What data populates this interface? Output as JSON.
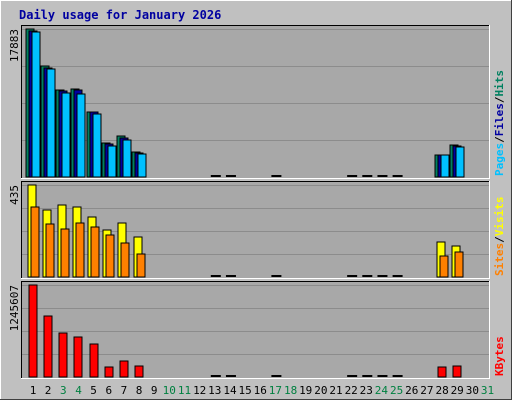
{
  "chart_data": {
    "type": "bar",
    "title": "Daily usage for January 2026",
    "colors": {
      "background": "#c0c0c0",
      "plot_bg": "#a8a8a8",
      "grid": "#8c8c8c",
      "title": "#0000a0",
      "hits": "#008060",
      "files": "#0000a0",
      "pages": "#00c0ff",
      "visits": "#ffff00",
      "sites": "#ff8000",
      "kbytes": "#ff0000",
      "weekend_label": "#008040"
    },
    "days": [
      "1",
      "2",
      "3",
      "4",
      "5",
      "6",
      "7",
      "8",
      "9",
      "10",
      "11",
      "12",
      "13",
      "14",
      "15",
      "16",
      "17",
      "18",
      "19",
      "20",
      "21",
      "22",
      "23",
      "24",
      "25",
      "26",
      "27",
      "28",
      "29",
      "30",
      "31"
    ],
    "weekend_days": [
      "3",
      "4",
      "10",
      "11",
      "17",
      "18",
      "24",
      "25",
      "31"
    ],
    "panels": [
      {
        "name": "hits-files-pages",
        "max_label": "17883",
        "max": 17883,
        "legend": [
          {
            "text": "Pages",
            "color": "#00c0ff"
          },
          {
            "text": "/",
            "color": "#000000"
          },
          {
            "text": "Files",
            "color": "#0000a0"
          },
          {
            "text": "/",
            "color": "#000000"
          },
          {
            "text": "Hits",
            "color": "#008060"
          }
        ],
        "series": [
          {
            "name": "Hits",
            "color": "#008060",
            "values": [
              17883,
              13400,
              10500,
              10600,
              7900,
              4100,
              4900,
              3000,
              0,
              0,
              0,
              0,
              0,
              0,
              0,
              0,
              0,
              0,
              0,
              0,
              0,
              0,
              0,
              0,
              0,
              0,
              0,
              2700,
              3900,
              0,
              0
            ]
          },
          {
            "name": "Files",
            "color": "#0000a0",
            "values": [
              17700,
              13200,
              10400,
              10500,
              7800,
              4000,
              4700,
              2900,
              0,
              0,
              0,
              0,
              0,
              0,
              0,
              0,
              0,
              0,
              0,
              0,
              0,
              0,
              0,
              0,
              0,
              0,
              0,
              2700,
              3800,
              0,
              0
            ]
          },
          {
            "name": "Pages",
            "color": "#00c0ff",
            "values": [
              17500,
              13000,
              10200,
              10000,
              7600,
              3800,
              4500,
              2800,
              0,
              0,
              0,
              0,
              0,
              0,
              0,
              0,
              0,
              0,
              0,
              0,
              0,
              0,
              0,
              0,
              0,
              0,
              0,
              2600,
              3600,
              0,
              0
            ]
          }
        ]
      },
      {
        "name": "visits-sites",
        "max_label": "435",
        "max": 435,
        "legend": [
          {
            "text": "Sites",
            "color": "#ff8000"
          },
          {
            "text": "/",
            "color": "#000000"
          },
          {
            "text": "Visits",
            "color": "#ffff00"
          }
        ],
        "series": [
          {
            "name": "Visits",
            "color": "#ffff00",
            "values": [
              435,
              315,
              340,
              330,
              285,
              220,
              255,
              190,
              0,
              0,
              0,
              0,
              0,
              0,
              0,
              0,
              0,
              0,
              0,
              0,
              0,
              0,
              0,
              0,
              0,
              0,
              0,
              165,
              145,
              0,
              0
            ]
          },
          {
            "name": "Sites",
            "color": "#ff8000",
            "values": [
              330,
              250,
              225,
              255,
              235,
              200,
              160,
              110,
              0,
              0,
              0,
              0,
              0,
              0,
              0,
              0,
              0,
              0,
              0,
              0,
              0,
              0,
              0,
              0,
              0,
              0,
              0,
              100,
              120,
              0,
              0
            ]
          }
        ]
      },
      {
        "name": "kbytes",
        "max_label": "1245607",
        "max": 1245607,
        "legend": [
          {
            "text": "KBytes",
            "color": "#ff0000"
          }
        ],
        "series": [
          {
            "name": "KBytes",
            "color": "#ff0000",
            "values": [
              1245607,
              820000,
              600000,
              540000,
              450000,
              140000,
              210000,
              150000,
              0,
              0,
              0,
              0,
              0,
              0,
              0,
              0,
              0,
              0,
              0,
              0,
              0,
              0,
              0,
              0,
              0,
              0,
              0,
              130000,
              150000,
              0,
              0
            ]
          }
        ]
      }
    ],
    "zero_marker_days": [
      "13",
      "14",
      "17",
      "22",
      "23",
      "24",
      "25"
    ],
    "grid": true
  }
}
